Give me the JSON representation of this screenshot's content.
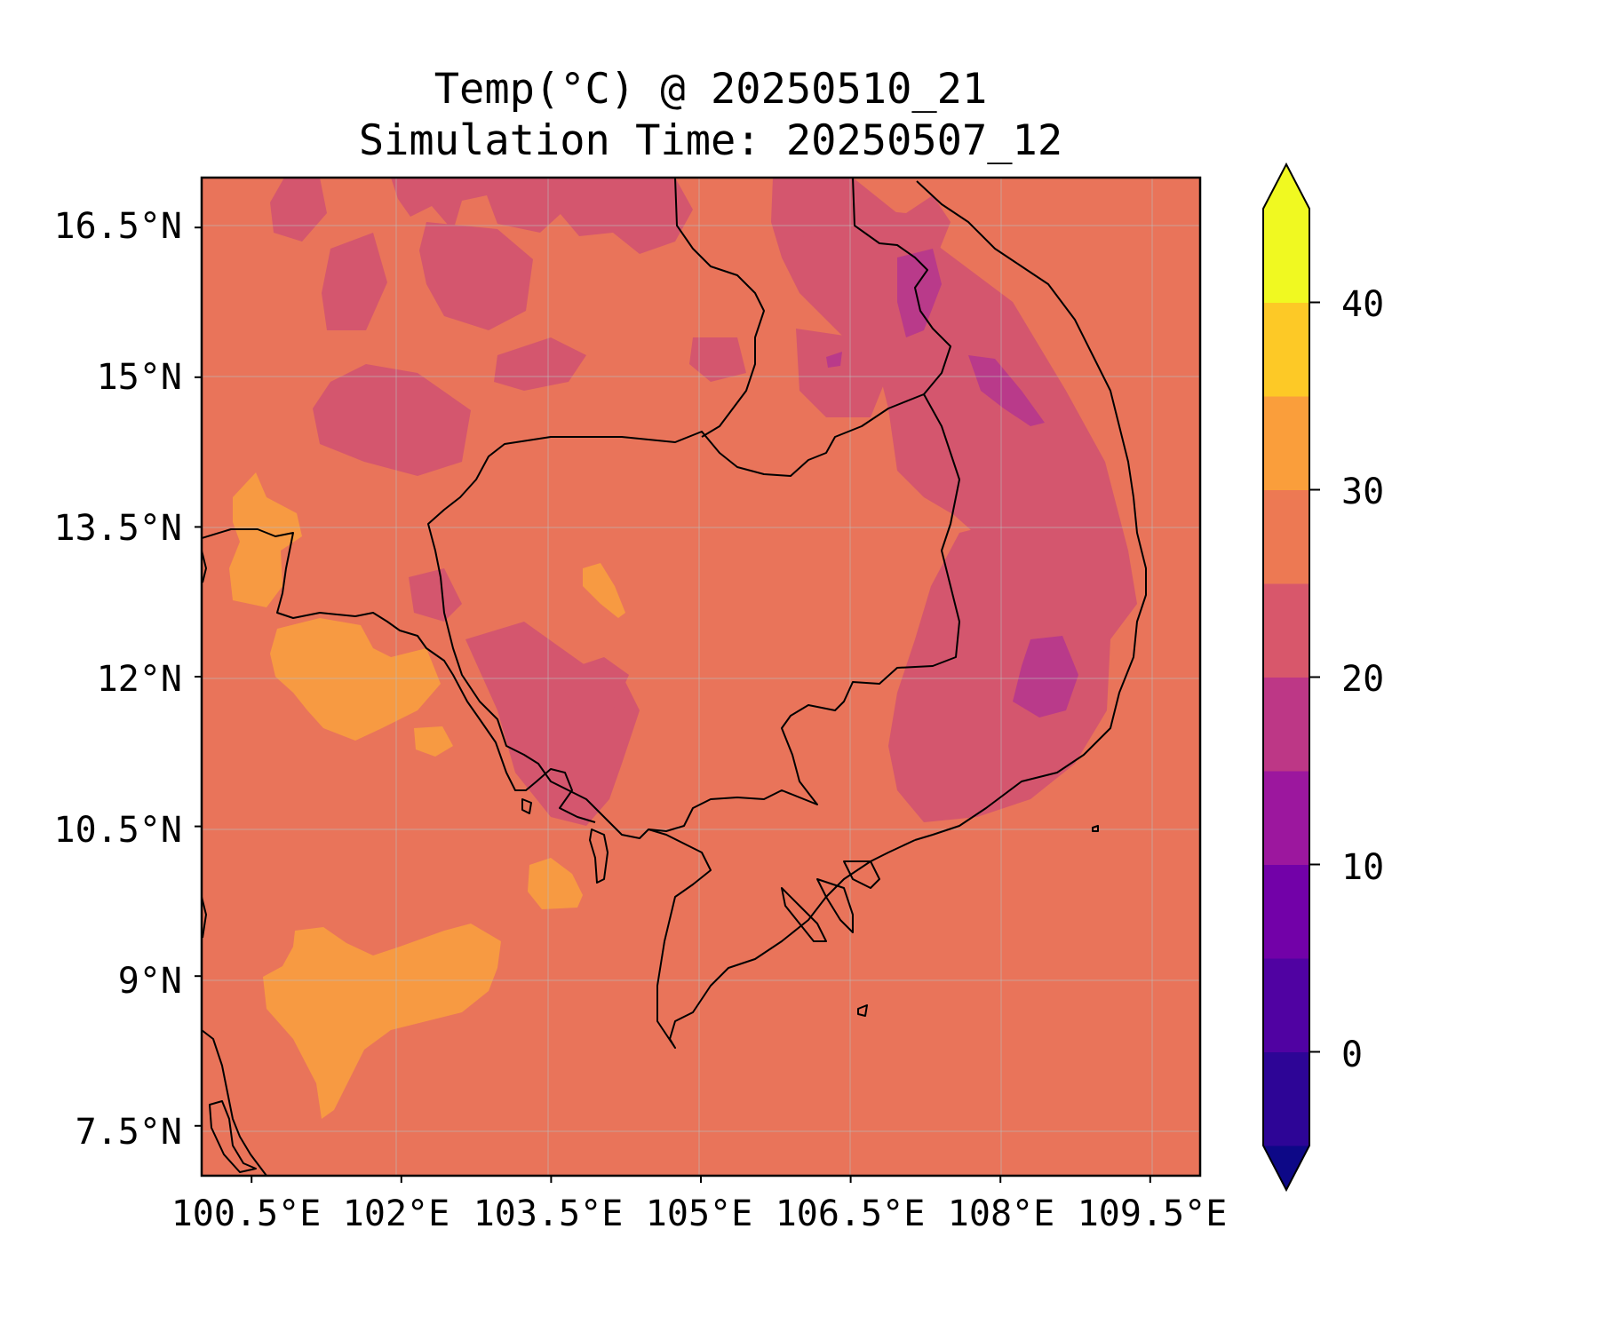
{
  "title": {
    "line1": "Temp(°C) @ 20250510_21",
    "line2": "Simulation Time: 20250507_12"
  },
  "map": {
    "region": "Cambodia / southern Indochina",
    "projection": "PlateCarree",
    "extent_lon": [
      100.0,
      110.0
    ],
    "extent_lat": [
      7.0,
      17.0
    ],
    "grid": true,
    "coastlines": true,
    "borders": true,
    "dominant_temperature_band_c": "25–30",
    "x_ticks": [
      {
        "value": 100.5,
        "label": "100.5°E"
      },
      {
        "value": 102.0,
        "label": "102°E"
      },
      {
        "value": 103.5,
        "label": "103.5°E"
      },
      {
        "value": 105.0,
        "label": "105°E"
      },
      {
        "value": 106.5,
        "label": "106.5°E"
      },
      {
        "value": 108.0,
        "label": "108°E"
      },
      {
        "value": 109.5,
        "label": "109.5°E"
      }
    ],
    "y_ticks": [
      {
        "value": 16.5,
        "label": "16.5°N"
      },
      {
        "value": 15.0,
        "label": "15°N"
      },
      {
        "value": 13.5,
        "label": "13.5°N"
      },
      {
        "value": 12.0,
        "label": "12°N"
      },
      {
        "value": 10.5,
        "label": "10.5°N"
      },
      {
        "value": 9.0,
        "label": "9°N"
      },
      {
        "value": 7.5,
        "label": "7.5°N"
      }
    ]
  },
  "colorbar": {
    "colormap": "plasma",
    "extend": "both",
    "levels": [
      -5,
      0,
      5,
      10,
      15,
      20,
      25,
      30,
      35,
      40,
      45
    ],
    "colors": [
      "#0d0887",
      "#2d0596",
      "#5002a2",
      "#7201a8",
      "#9c179e",
      "#bd3786",
      "#d8576b",
      "#ed7953",
      "#fa9e3b",
      "#fdc926",
      "#f0f921"
    ],
    "under_color": "#0d0887",
    "over_color": "#f0f921",
    "ticks": [
      {
        "value": 0,
        "label": "0"
      },
      {
        "value": 10,
        "label": "10"
      },
      {
        "value": 20,
        "label": "20"
      },
      {
        "value": 30,
        "label": "30"
      },
      {
        "value": 40,
        "label": "40"
      }
    ]
  }
}
